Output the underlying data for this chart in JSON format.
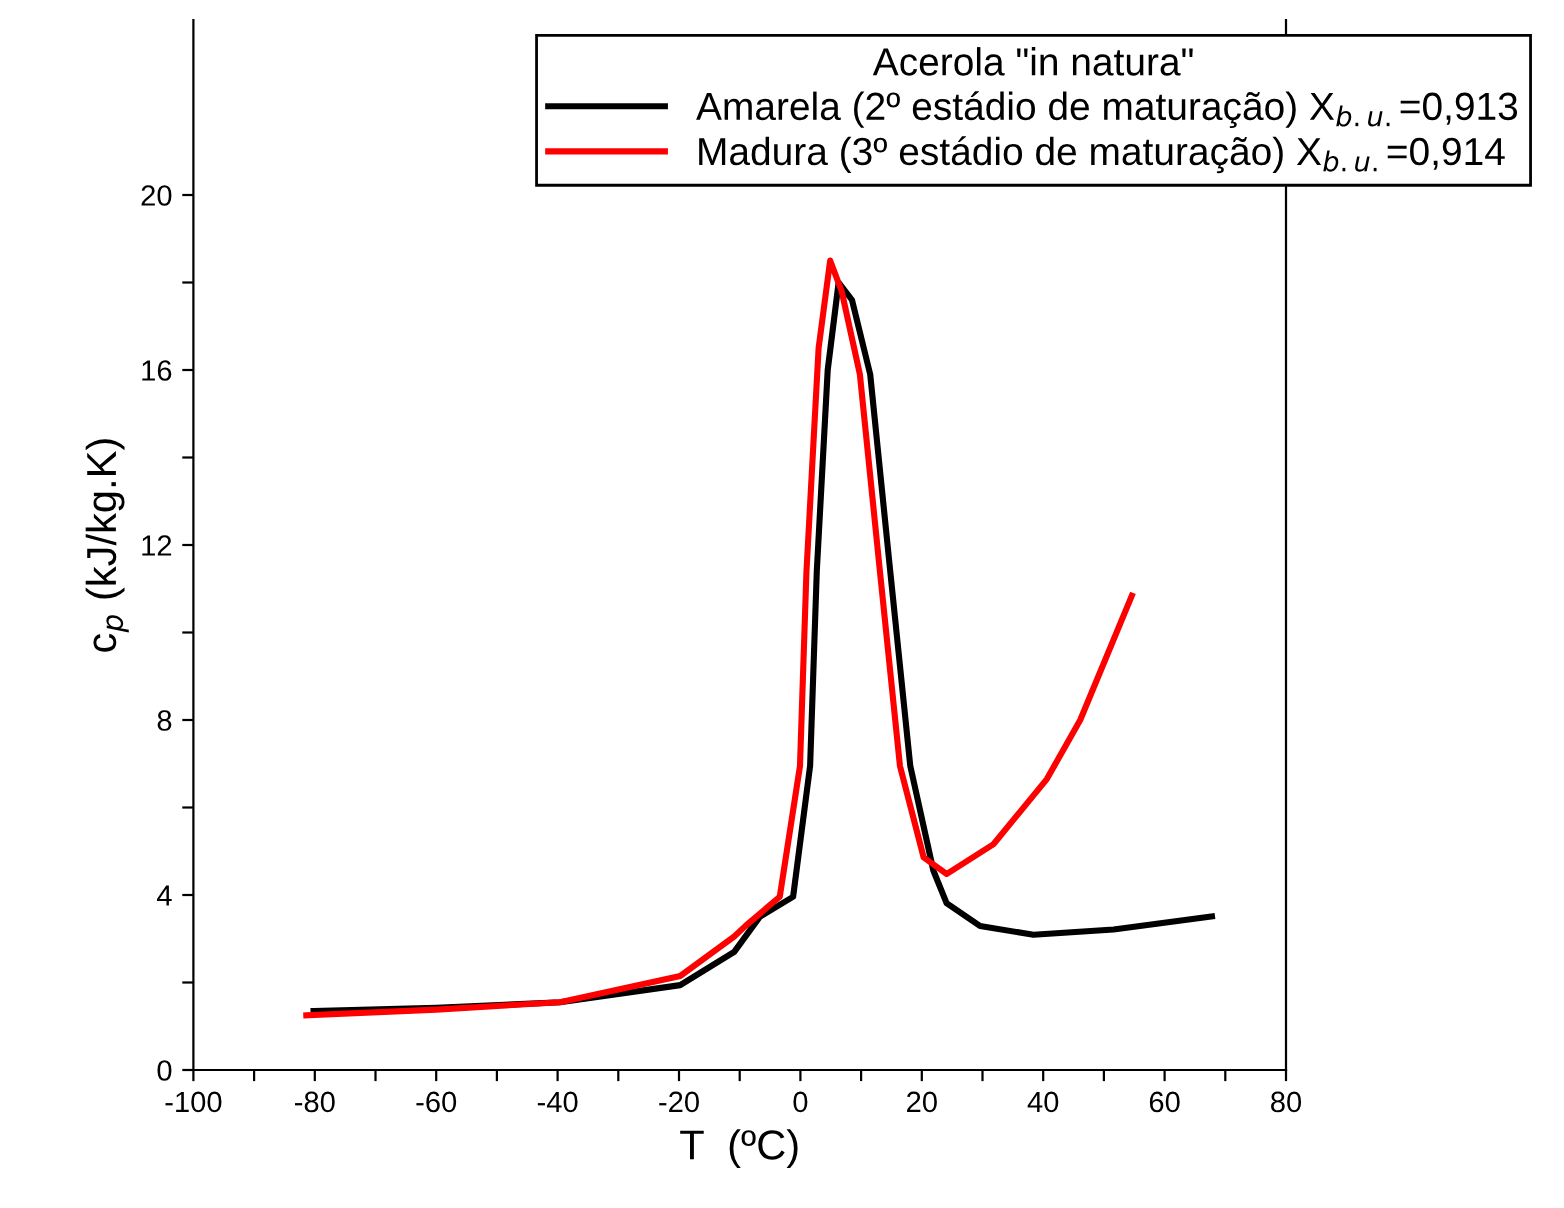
{
  "chart_data": {
    "type": "line",
    "xlabel": "T  (ºC)",
    "ylabel": "c$_{p}$ (kJ/kg.K)",
    "legend_title": "Acerola \"in natura\"",
    "legend": "top right",
    "grid": false,
    "marker": "none",
    "line_style": "solid",
    "xlim": [
      -100,
      80
    ],
    "ylim": [
      0,
      24
    ],
    "xticks": [
      -100,
      {
        "value": -90,
        "label": null
      },
      -80,
      {
        "value": -70,
        "label": null
      },
      -60,
      {
        "value": -50,
        "label": null
      },
      -40,
      {
        "value": -30,
        "label": null
      },
      -20,
      {
        "value": -10,
        "label": null
      },
      0,
      {
        "value": 10,
        "label": null
      },
      20,
      {
        "value": 30,
        "label": null
      },
      40,
      {
        "value": 50,
        "label": null
      },
      60,
      {
        "value": 70,
        "label": null
      },
      80
    ],
    "yticks": [
      0,
      {
        "value": 2,
        "label": null
      },
      4,
      {
        "value": 6,
        "label": null
      },
      8,
      {
        "value": 10,
        "label": null
      },
      12,
      {
        "value": 14,
        "label": null
      },
      16,
      {
        "value": 18,
        "label": null
      },
      20
    ],
    "series": [
      {
        "name": "Amarela (2º estádio de maturação) X$_{b.u.}$=0,913",
        "color": "#000000",
        "x": [
          -80.2,
          -60,
          -39.6,
          -19.8,
          -10.9,
          -6.7,
          -1.2,
          1.6,
          2.7,
          4.5,
          6.3,
          8.5,
          11.5,
          14.8,
          18.1,
          21.9,
          24.1,
          29.6,
          38.4,
          51.6,
          67.8
        ],
        "values": [
          1.35,
          1.42,
          1.55,
          1.94,
          2.7,
          3.5,
          3.96,
          6.95,
          11.4,
          16.0,
          18.0,
          17.6,
          15.9,
          11.4,
          6.95,
          4.56,
          3.81,
          3.29,
          3.09,
          3.21,
          3.51
        ]
      },
      {
        "name": "Madura (3º estádio de maturação) X$_{b.u.}$=0,914",
        "color": "#ff0000",
        "x": [
          -81.4,
          -60,
          -39.6,
          -19.8,
          -10.9,
          -9.0,
          -3.4,
          -0.07,
          1.0,
          3.0,
          4.9,
          6.8,
          9.8,
          13.1,
          16.4,
          20.3,
          24.1,
          31.8,
          40.6,
          46.1,
          54.6
        ],
        "values": [
          1.25,
          1.38,
          1.55,
          2.15,
          3.05,
          3.3,
          3.96,
          6.95,
          11.4,
          16.5,
          18.5,
          17.8,
          15.9,
          11.4,
          6.95,
          4.86,
          4.48,
          5.16,
          6.65,
          8.0,
          10.84
        ]
      }
    ]
  }
}
